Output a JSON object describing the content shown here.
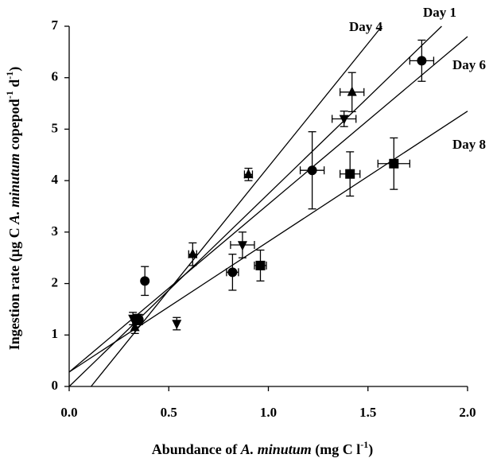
{
  "chart_data": {
    "type": "scatter",
    "xlabel": [
      "Abundance of ",
      "A. minutum",
      "  (mg C l",
      "-1",
      ")"
    ],
    "ylabel": [
      "Ingestion rate (µg C ",
      "A. minutum",
      " copepod",
      "-1",
      " d",
      "-1",
      ")"
    ],
    "xlim": [
      0,
      2.0
    ],
    "ylim": [
      0,
      7
    ],
    "xticks": [
      {
        "value": 0,
        "label": "0.0"
      },
      0.5,
      {
        "value": 1,
        "label": "1.0"
      },
      1.5,
      {
        "value": 2,
        "label": "2.0"
      }
    ],
    "yticks": [
      0,
      1,
      2,
      3,
      4,
      5,
      6,
      7
    ],
    "series": [
      {
        "name": "Day 1",
        "color": "#000000",
        "marker": "circle",
        "x": [
          0.35,
          0.38,
          0.82,
          1.22,
          1.77
        ],
        "values": [
          1.3,
          2.05,
          2.22,
          4.2,
          6.33
        ],
        "xerr": [
          0,
          0,
          0.03,
          0.06,
          0.06
        ],
        "yerr": [
          0.1,
          0.28,
          0.35,
          0.75,
          0.4
        ],
        "fit_x": [
          0,
          1.87
        ],
        "fit_y": [
          0,
          7
        ]
      },
      {
        "name": "Day 4",
        "color": "#000000",
        "marker": "triangle-up",
        "x": [
          0.33,
          0.62,
          0.9,
          1.42
        ],
        "values": [
          1.15,
          2.57,
          4.12,
          5.72
        ],
        "xerr": [
          0,
          0.02,
          0.02,
          0.06
        ],
        "yerr": [
          0.12,
          0.22,
          0.12,
          0.38
        ],
        "fit_x": [
          0.11,
          1.57
        ],
        "fit_y": [
          0,
          7
        ]
      },
      {
        "name": "Day 6",
        "color": "#000000",
        "marker": "triangle-down",
        "x": [
          0.32,
          0.54,
          0.87,
          1.38
        ],
        "values": [
          1.32,
          1.22,
          2.75,
          5.2
        ],
        "xerr": [
          0,
          0,
          0.06,
          0.06
        ],
        "yerr": [
          0.12,
          0.12,
          0.25,
          0.15
        ],
        "fit_x": [
          0,
          2.0
        ],
        "fit_y": [
          0.28,
          6.8
        ]
      },
      {
        "name": "Day 8",
        "color": "#000000",
        "marker": "square",
        "x": [
          0.34,
          0.96,
          1.41,
          1.63
        ],
        "values": [
          1.3,
          2.35,
          4.13,
          4.33
        ],
        "xerr": [
          0,
          0.03,
          0.05,
          0.08
        ],
        "yerr": [
          0.1,
          0.3,
          0.43,
          0.5
        ],
        "fit_x": [
          0,
          2.0
        ],
        "fit_y": [
          0.28,
          5.35
        ]
      }
    ]
  }
}
